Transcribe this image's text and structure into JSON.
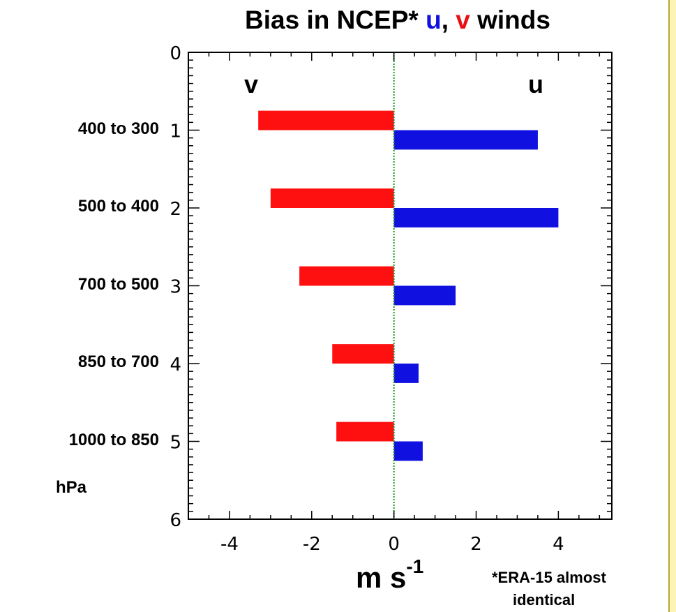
{
  "title": {
    "prefix": "Bias in NCEP* ",
    "u": "u",
    "comma": ", ",
    "v": "v",
    "suffix": " winds"
  },
  "legend": {
    "v_label": "v",
    "u_label": "u"
  },
  "colors": {
    "u": "#1010e0",
    "v": "#ff1010",
    "zero_line": "#1a9a1a",
    "axis": "#000000"
  },
  "unit_left": "hPa",
  "x_unit": {
    "base": "m s",
    "exp": "-1"
  },
  "note": [
    "*ERA-15 almost",
    "identical"
  ],
  "chart_data": {
    "type": "bar",
    "orientation": "horizontal",
    "title": "Bias in NCEP* u, v winds",
    "xlabel": "m s-1",
    "ylabel": "hPa",
    "categories": [
      "400 to 300",
      "500 to 400",
      "700 to 500",
      "850 to 700",
      "1000 to 850"
    ],
    "y_positions": [
      1,
      2,
      3,
      4,
      5
    ],
    "ylim": [
      0,
      6
    ],
    "yticks": [
      "0",
      "1",
      "2",
      "3",
      "4",
      "5",
      "6"
    ],
    "xlim": [
      -5,
      5.3
    ],
    "xticks": [
      "-4",
      "-2",
      "0",
      "2",
      "4"
    ],
    "series": [
      {
        "name": "v",
        "values": [
          -3.3,
          -3.0,
          -2.3,
          -1.5,
          -1.4
        ]
      },
      {
        "name": "u",
        "values": [
          3.5,
          4.0,
          1.5,
          0.6,
          0.7
        ]
      }
    ]
  }
}
